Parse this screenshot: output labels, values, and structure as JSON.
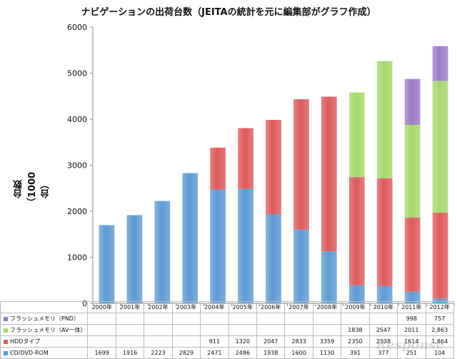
{
  "chart_data": {
    "type": "bar",
    "stacked": true,
    "title": "ナビゲーションの出荷台数（JEITAの統計を元に編集部がグラフ作成）",
    "ylabel": "台数（1000台）",
    "xlabel": "",
    "ylim": [
      0,
      6000
    ],
    "yticks": [
      0,
      1000,
      2000,
      3000,
      4000,
      5000,
      6000
    ],
    "categories": [
      "2000年",
      "2001年",
      "2002年",
      "2003年",
      "2004年",
      "2005年",
      "2006年",
      "2007年",
      "2008年",
      "2009年",
      "2010年",
      "2011年",
      "2012年"
    ],
    "series": [
      {
        "name": "CD/DVD-ROM",
        "color": "#5b9bd5",
        "values": [
          1699,
          1916,
          2223,
          2829,
          2471,
          2486,
          1938,
          1600,
          1130,
          391,
          377,
          251,
          104
        ],
        "labels": [
          "1699",
          "1916",
          "2223",
          "2829",
          "2471",
          "2486",
          "1938",
          "1600",
          "1130",
          "391",
          "377",
          "251",
          "104"
        ]
      },
      {
        "name": "HDDタイプ",
        "color": "#e05a5a",
        "values": [
          null,
          null,
          null,
          null,
          911,
          1320,
          2047,
          2833,
          3359,
          2350,
          2338,
          1614,
          1864
        ],
        "labels": [
          "",
          "",
          "",
          "",
          "911",
          "1320",
          "2047",
          "2833",
          "3359",
          "2350",
          "2338",
          "1614",
          "1,864"
        ]
      },
      {
        "name": "フラッシュメモリ（AV一体）",
        "color": "#a6d96a",
        "values": [
          null,
          null,
          null,
          null,
          null,
          null,
          null,
          null,
          null,
          1838,
          2547,
          2011,
          2863
        ],
        "labels": [
          "",
          "",
          "",
          "",
          "",
          "",
          "",
          "",
          "",
          "1838",
          "2547",
          "2011",
          "2,863"
        ]
      },
      {
        "name": "フラッシュメモリ（PND）",
        "color": "#9d7cc8",
        "values": [
          null,
          null,
          null,
          null,
          null,
          null,
          null,
          null,
          null,
          null,
          null,
          998,
          757
        ],
        "labels": [
          "",
          "",
          "",
          "",
          "",
          "",
          "",
          "",
          "",
          "",
          "",
          "998",
          "757"
        ]
      }
    ],
    "grid": false,
    "legend": "table-below"
  },
  "watermark": "Response"
}
